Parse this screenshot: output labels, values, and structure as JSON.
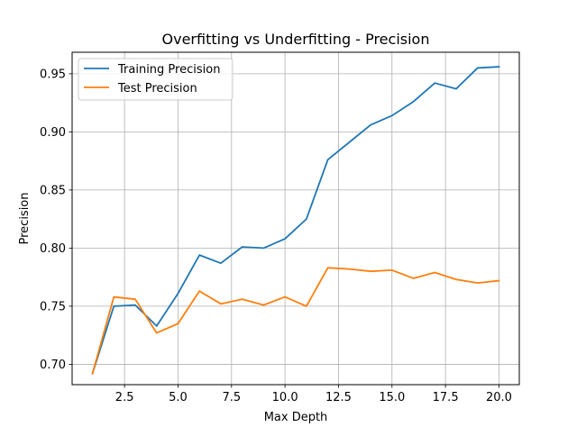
{
  "chart_data": {
    "type": "line",
    "title": "Overfitting vs Underfitting - Precision",
    "xlabel": "Max Depth",
    "ylabel": "Precision",
    "xlim": [
      0.05,
      20.95
    ],
    "ylim": [
      0.6825,
      0.9685
    ],
    "xticks": [
      2.5,
      5.0,
      7.5,
      10.0,
      12.5,
      15.0,
      17.5,
      20.0
    ],
    "xtick_labels": [
      "2.5",
      "5.0",
      "7.5",
      "10.0",
      "12.5",
      "15.0",
      "17.5",
      "20.0"
    ],
    "yticks": [
      0.7,
      0.75,
      0.8,
      0.85,
      0.9,
      0.95
    ],
    "ytick_labels": [
      "0.70",
      "0.75",
      "0.80",
      "0.85",
      "0.90",
      "0.95"
    ],
    "grid": true,
    "legend_position": "top-left",
    "x": [
      1,
      2,
      3,
      4,
      5,
      6,
      7,
      8,
      9,
      10,
      11,
      12,
      13,
      14,
      15,
      16,
      17,
      18,
      19,
      20
    ],
    "series": [
      {
        "name": "Training Precision",
        "color": "#1f77b4",
        "values": [
          0.692,
          0.75,
          0.751,
          0.733,
          0.761,
          0.794,
          0.787,
          0.801,
          0.8,
          0.808,
          0.825,
          0.876,
          0.891,
          0.906,
          0.914,
          0.926,
          0.942,
          0.937,
          0.955,
          0.956
        ]
      },
      {
        "name": "Test Precision",
        "color": "#ff7f0e",
        "values": [
          0.692,
          0.758,
          0.756,
          0.727,
          0.735,
          0.763,
          0.752,
          0.756,
          0.751,
          0.758,
          0.75,
          0.783,
          0.782,
          0.78,
          0.781,
          0.774,
          0.779,
          0.773,
          0.77,
          0.772
        ]
      }
    ]
  }
}
